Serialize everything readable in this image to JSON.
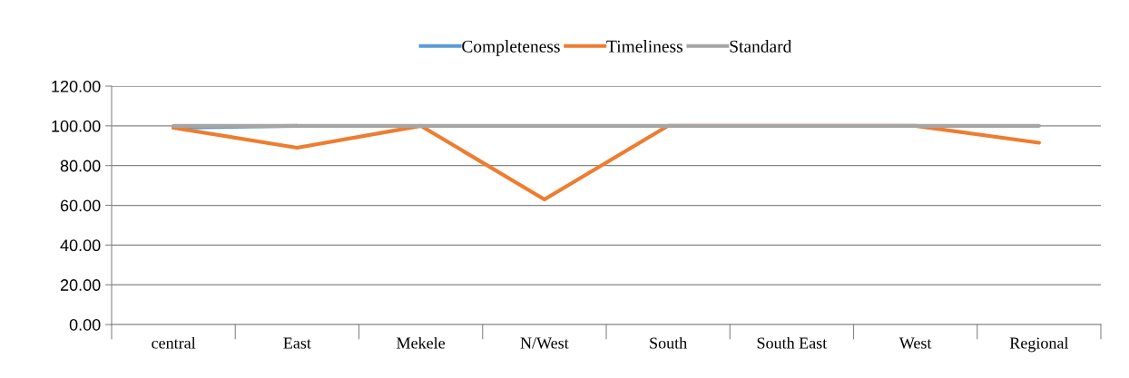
{
  "chart_data": {
    "type": "line",
    "categories": [
      "central",
      "East",
      "Mekele",
      "N/West",
      "South",
      "South East",
      "West",
      "Regional"
    ],
    "series": [
      {
        "name": "Completeness",
        "color": "#5b9bd5",
        "values": [
          99,
          100,
          null,
          null,
          null,
          null,
          null,
          null
        ]
      },
      {
        "name": "Timeliness",
        "color": "#ed7d31",
        "values": [
          99,
          89,
          100,
          63,
          100,
          100,
          100,
          91.5
        ]
      },
      {
        "name": "Standard",
        "color": "#a5a5a5",
        "values": [
          100,
          100,
          100,
          100,
          100,
          100,
          100,
          100
        ]
      }
    ],
    "ylim": [
      0,
      120
    ],
    "yticks": [
      {
        "value": 0,
        "label": "0.00"
      },
      {
        "value": 20,
        "label": "20.00"
      },
      {
        "value": 40,
        "label": "40.00"
      },
      {
        "value": 60,
        "label": "60.00"
      },
      {
        "value": 80,
        "label": "80.00"
      },
      {
        "value": 100,
        "label": "100.00"
      },
      {
        "value": 120,
        "label": "120.00"
      }
    ],
    "grid": "y",
    "legend": "top",
    "marker": "none",
    "line_style": "solid"
  }
}
